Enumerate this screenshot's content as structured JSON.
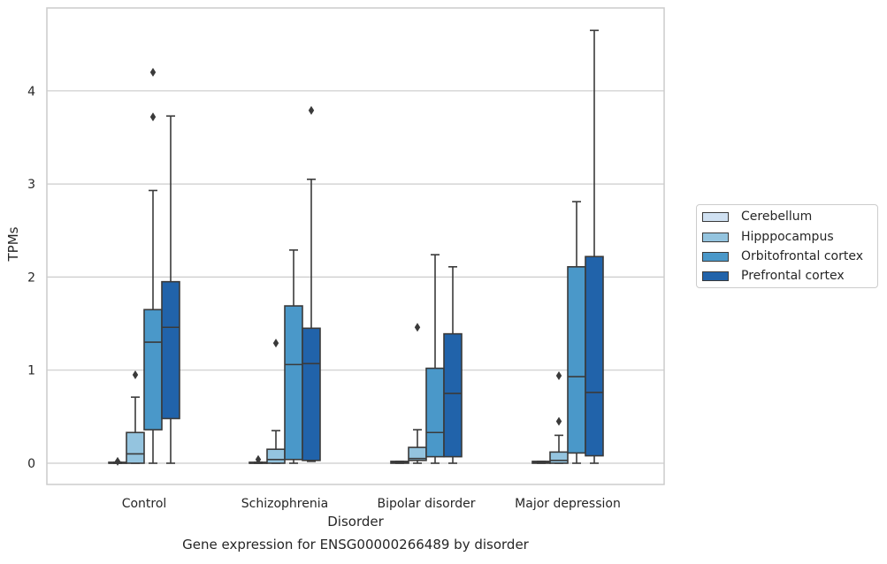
{
  "chart_data": {
    "type": "box",
    "title": "",
    "caption": "Gene expression for ENSG00000266489 by disorder",
    "xlabel": "Disorder",
    "ylabel": "TPMs",
    "ylim": [
      -0.23,
      4.88
    ],
    "yticks": [
      "0",
      "1",
      "2",
      "3",
      "4"
    ],
    "grid": "horizontal",
    "legend_position": "right, outside plot",
    "categories": [
      "Control",
      "Schizophrenia",
      "Bipolar disorder",
      "Major depression"
    ],
    "series": [
      {
        "name": "Cerebellum",
        "color": "#d0e1f2",
        "boxes": [
          {
            "min": 0.0,
            "q1": 0.0,
            "median": 0.0,
            "q3": 0.01,
            "max": 0.01,
            "outliers": [
              0.02
            ]
          },
          {
            "min": 0.0,
            "q1": 0.0,
            "median": 0.0,
            "q3": 0.01,
            "max": 0.01,
            "outliers": [
              0.04
            ]
          },
          {
            "min": 0.0,
            "q1": 0.0,
            "median": 0.01,
            "q3": 0.02,
            "max": 0.02,
            "outliers": []
          },
          {
            "min": 0.0,
            "q1": 0.0,
            "median": 0.01,
            "q3": 0.02,
            "max": 0.02,
            "outliers": []
          }
        ]
      },
      {
        "name": "Hipppocampus",
        "color": "#94c4df",
        "boxes": [
          {
            "min": 0.0,
            "q1": 0.0,
            "median": 0.1,
            "q3": 0.33,
            "max": 0.71,
            "outliers": [
              0.95
            ]
          },
          {
            "min": 0.0,
            "q1": 0.0,
            "median": 0.04,
            "q3": 0.15,
            "max": 0.35,
            "outliers": [
              1.29
            ]
          },
          {
            "min": 0.0,
            "q1": 0.03,
            "median": 0.05,
            "q3": 0.17,
            "max": 0.36,
            "outliers": [
              1.46
            ]
          },
          {
            "min": 0.0,
            "q1": 0.0,
            "median": 0.03,
            "q3": 0.12,
            "max": 0.3,
            "outliers": [
              0.45,
              0.94
            ]
          }
        ]
      },
      {
        "name": "Orbitofrontal cortex",
        "color": "#4a98c9",
        "boxes": [
          {
            "min": 0.0,
            "q1": 0.36,
            "median": 1.3,
            "q3": 1.65,
            "max": 2.93,
            "outliers": [
              3.72,
              4.2
            ]
          },
          {
            "min": 0.0,
            "q1": 0.04,
            "median": 1.06,
            "q3": 1.69,
            "max": 2.29,
            "outliers": []
          },
          {
            "min": 0.0,
            "q1": 0.07,
            "median": 0.33,
            "q3": 1.02,
            "max": 2.24,
            "outliers": []
          },
          {
            "min": 0.0,
            "q1": 0.11,
            "median": 0.93,
            "q3": 2.11,
            "max": 2.81,
            "outliers": []
          }
        ]
      },
      {
        "name": "Prefrontal cortex",
        "color": "#2163aa",
        "boxes": [
          {
            "min": 0.0,
            "q1": 0.48,
            "median": 1.46,
            "q3": 1.95,
            "max": 3.73,
            "outliers": []
          },
          {
            "min": 0.02,
            "q1": 0.03,
            "median": 1.07,
            "q3": 1.45,
            "max": 3.05,
            "outliers": [
              3.79
            ]
          },
          {
            "min": 0.0,
            "q1": 0.07,
            "median": 0.75,
            "q3": 1.39,
            "max": 2.11,
            "outliers": []
          },
          {
            "min": 0.0,
            "q1": 0.08,
            "median": 0.76,
            "q3": 2.22,
            "max": 4.65,
            "outliers": []
          }
        ]
      }
    ]
  }
}
